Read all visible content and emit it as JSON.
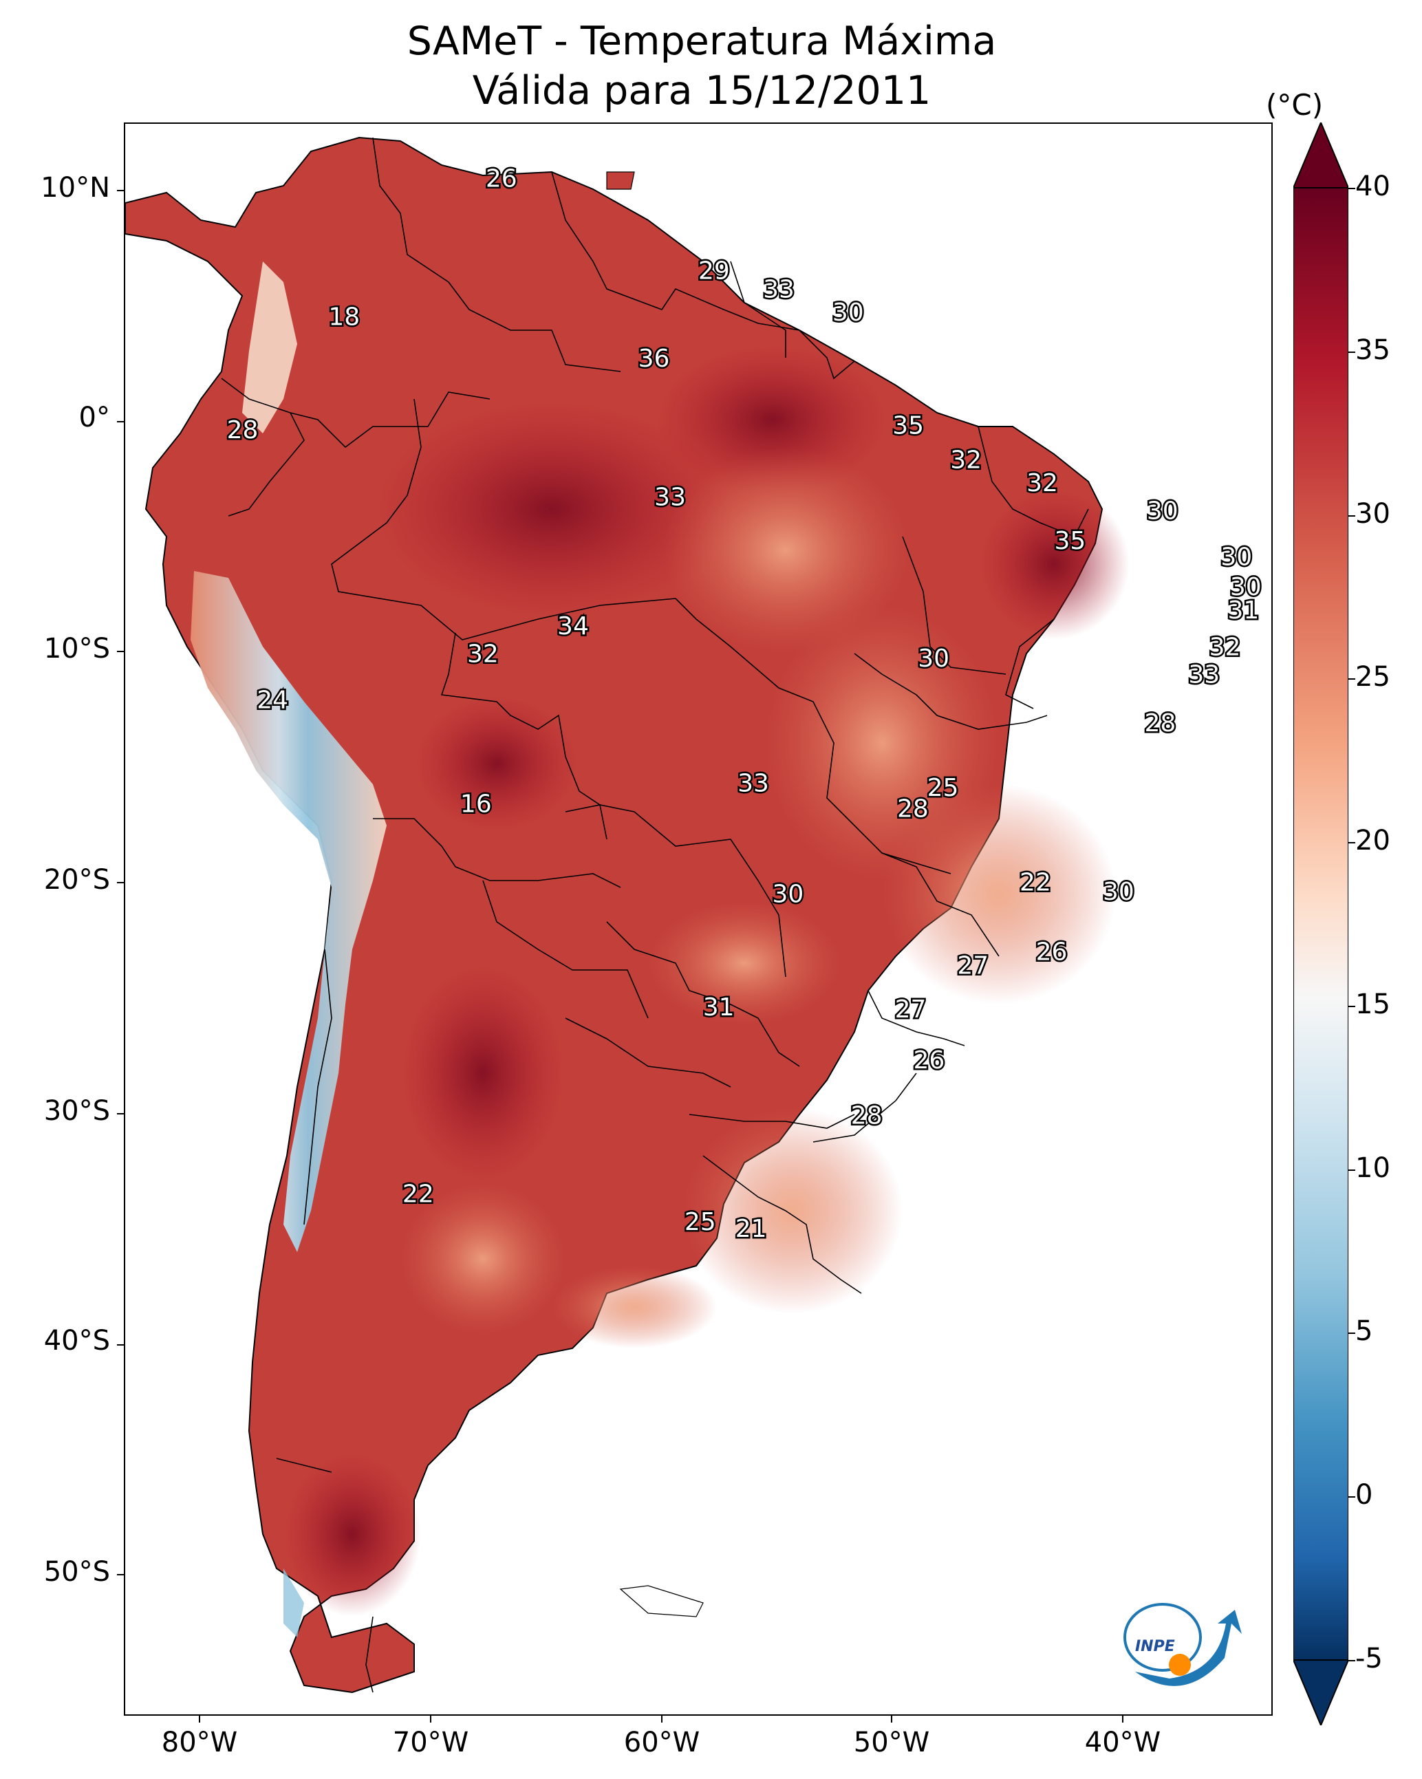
{
  "title": {
    "line1": "SAMeT - Temperatura Máxima",
    "line2": "Válida para 15/12/2011"
  },
  "axes": {
    "lat_labels": [
      "10°N",
      "0°",
      "10°S",
      "20°S",
      "30°S",
      "40°S",
      "50°S"
    ],
    "lon_labels": [
      "80°W",
      "70°W",
      "60°W",
      "50°W",
      "40°W"
    ]
  },
  "colorbar": {
    "unit": "(°C)",
    "ticks": [
      "40",
      "35",
      "30",
      "25",
      "20",
      "15",
      "10",
      "5",
      "0",
      "-5"
    ],
    "range": [
      -5,
      40
    ],
    "colormap": "RdBu_r"
  },
  "station_labels": [
    {
      "value": "26",
      "lon": -67.0,
      "lat": 10.6
    },
    {
      "value": "18",
      "lon": -73.8,
      "lat": 4.6
    },
    {
      "value": "29",
      "lon": -57.8,
      "lat": 6.6
    },
    {
      "value": "33",
      "lon": -55.0,
      "lat": 5.8
    },
    {
      "value": "30",
      "lon": -52.0,
      "lat": 4.8
    },
    {
      "value": "36",
      "lon": -60.4,
      "lat": 2.8
    },
    {
      "value": "28",
      "lon": -78.2,
      "lat": -0.3
    },
    {
      "value": "35",
      "lon": -49.4,
      "lat": -0.1
    },
    {
      "value": "32",
      "lon": -46.9,
      "lat": -1.6
    },
    {
      "value": "32",
      "lon": -43.6,
      "lat": -2.6
    },
    {
      "value": "33",
      "lon": -59.7,
      "lat": -3.2
    },
    {
      "value": "30",
      "lon": -38.4,
      "lat": -3.8
    },
    {
      "value": "35",
      "lon": -42.4,
      "lat": -5.1
    },
    {
      "value": "30",
      "lon": -35.2,
      "lat": -5.8
    },
    {
      "value": "30",
      "lon": -34.8,
      "lat": -7.1
    },
    {
      "value": "31",
      "lon": -34.9,
      "lat": -8.1
    },
    {
      "value": "34",
      "lon": -63.9,
      "lat": -8.8
    },
    {
      "value": "32",
      "lon": -67.8,
      "lat": -10.0
    },
    {
      "value": "30",
      "lon": -48.3,
      "lat": -10.2
    },
    {
      "value": "32",
      "lon": -35.7,
      "lat": -9.7
    },
    {
      "value": "33",
      "lon": -36.6,
      "lat": -10.9
    },
    {
      "value": "24",
      "lon": -76.9,
      "lat": -12.0
    },
    {
      "value": "28",
      "lon": -38.5,
      "lat": -13.0
    },
    {
      "value": "33",
      "lon": -56.1,
      "lat": -15.6
    },
    {
      "value": "25",
      "lon": -47.9,
      "lat": -15.8
    },
    {
      "value": "28",
      "lon": -49.2,
      "lat": -16.7
    },
    {
      "value": "16",
      "lon": -68.1,
      "lat": -16.5
    },
    {
      "value": "22",
      "lon": -43.9,
      "lat": -19.9
    },
    {
      "value": "30",
      "lon": -40.3,
      "lat": -20.3
    },
    {
      "value": "30",
      "lon": -54.6,
      "lat": -20.4
    },
    {
      "value": "26",
      "lon": -43.2,
      "lat": -22.9
    },
    {
      "value": "27",
      "lon": -46.6,
      "lat": -23.5
    },
    {
      "value": "31",
      "lon": -57.6,
      "lat": -25.3
    },
    {
      "value": "27",
      "lon": -49.3,
      "lat": -25.4
    },
    {
      "value": "26",
      "lon": -48.5,
      "lat": -27.6
    },
    {
      "value": "28",
      "lon": -51.2,
      "lat": -30.0
    },
    {
      "value": "22",
      "lon": -70.6,
      "lat": -33.4
    },
    {
      "value": "25",
      "lon": -58.4,
      "lat": -34.6
    },
    {
      "value": "21",
      "lon": -56.2,
      "lat": -34.9
    }
  ],
  "colors": {
    "hot": "#67001f",
    "warm": "#c43c3c",
    "mild": "#f4a582",
    "neutral": "#f7f7f7",
    "cool": "#92c5de",
    "cold": "#053061"
  },
  "logo": {
    "text": "INPE"
  }
}
